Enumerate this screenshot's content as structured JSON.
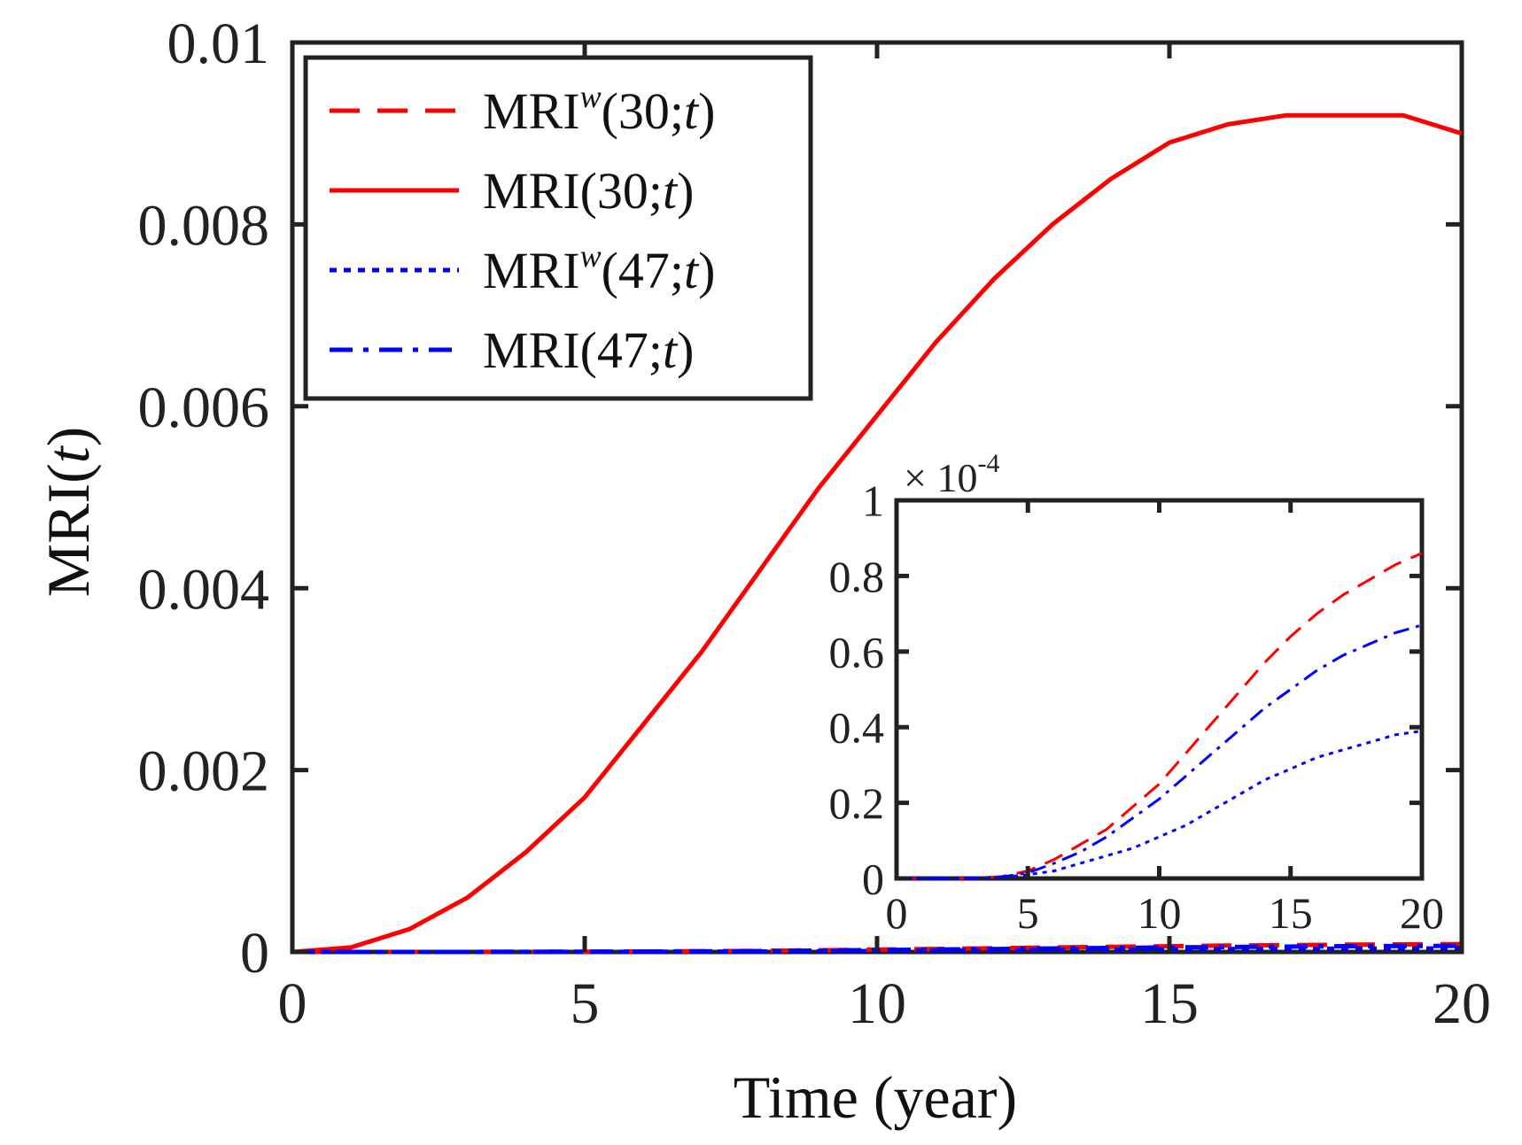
{
  "chart_data": [
    {
      "type": "line",
      "title": "",
      "xlabel": "Time (year)",
      "ylabel": "MRI(t)",
      "xlim": [
        0,
        20
      ],
      "ylim": [
        0,
        0.01
      ],
      "xticks": [
        0,
        5,
        10,
        15,
        20
      ],
      "yticks": [
        0,
        0.002,
        0.004,
        0.006,
        0.008,
        0.01
      ],
      "xtick_labels": [
        "0",
        "5",
        "10",
        "15",
        "20"
      ],
      "ytick_labels": [
        "0",
        "0.002",
        "0.004",
        "0.006",
        "0.008",
        "0.01"
      ],
      "legend_position": "top-left",
      "grid": false,
      "series": [
        {
          "name": "MRI^w(30;t)",
          "color": "#ff0000",
          "style": "dashed",
          "x": [
            0,
            2,
            4,
            6,
            8,
            10,
            12,
            14,
            16,
            18,
            20
          ],
          "y": [
            0,
            0.0,
            1e-06,
            5e-06,
            1.2e-05,
            2.5e-05,
            4.1e-05,
            5.6e-05,
            7e-05,
            8e-05,
            8.7e-05
          ]
        },
        {
          "name": "MRI(30;t)",
          "color": "#ff0000",
          "style": "solid",
          "x": [
            0,
            1,
            2,
            3,
            4,
            5,
            6,
            7,
            8,
            9,
            10,
            11,
            12,
            13,
            14,
            15,
            16,
            17,
            18,
            19,
            20
          ],
          "y": [
            0,
            5e-05,
            0.00025,
            0.0006,
            0.0011,
            0.0017,
            0.0025,
            0.0033,
            0.0042,
            0.0051,
            0.0059,
            0.0067,
            0.0074,
            0.008,
            0.0085,
            0.0089,
            0.0091,
            0.0092,
            0.0092,
            0.0092,
            0.009
          ]
        },
        {
          "name": "MRI^w(47;t)",
          "color": "#0000ff",
          "style": "dotted",
          "x": [
            0,
            2,
            4,
            6,
            8,
            10,
            12,
            14,
            16,
            18,
            20
          ],
          "y": [
            0,
            0.0,
            5e-07,
            2e-06,
            5e-06,
            1.1e-05,
            1.9e-05,
            2.6e-05,
            3.2e-05,
            3.6e-05,
            3.9e-05
          ]
        },
        {
          "name": "MRI(47;t)",
          "color": "#0000ff",
          "style": "dashdot",
          "x": [
            0,
            2,
            4,
            6,
            8,
            10,
            12,
            14,
            16,
            18,
            20
          ],
          "y": [
            0,
            0.0,
            1e-06,
            4e-06,
            1e-05,
            2e-05,
            3.2e-05,
            4.4e-05,
            5.5e-05,
            6.3e-05,
            6.7e-05
          ]
        }
      ]
    },
    {
      "type": "line",
      "title": "",
      "xlim": [
        0,
        20
      ],
      "ylim": [
        0,
        1
      ],
      "xticks": [
        0,
        5,
        10,
        15,
        20
      ],
      "yticks": [
        0,
        0.2,
        0.4,
        0.6,
        0.8,
        1
      ],
      "xtick_labels": [
        "0",
        "5",
        "10",
        "15",
        "20"
      ],
      "ytick_labels": [
        "0",
        "0.2",
        "0.4",
        "0.6",
        "0.8",
        "1"
      ],
      "y_multiplier": "× 10^-4",
      "legend_position": "none",
      "grid": false,
      "series": [
        {
          "color": "#ff0000",
          "style": "dashed",
          "x": [
            0,
            2,
            3,
            4,
            5,
            6,
            7,
            8,
            9,
            10,
            11,
            12,
            13,
            14,
            15,
            16,
            17,
            18,
            19,
            20
          ],
          "y": [
            0,
            0,
            0.001,
            0.005,
            0.02,
            0.05,
            0.09,
            0.13,
            0.19,
            0.25,
            0.33,
            0.41,
            0.49,
            0.57,
            0.64,
            0.7,
            0.75,
            0.79,
            0.83,
            0.86
          ]
        },
        {
          "color": "#0000ff",
          "style": "dotted",
          "x": [
            0,
            2,
            3,
            4,
            5,
            6,
            7,
            8,
            9,
            10,
            11,
            12,
            13,
            14,
            15,
            16,
            17,
            18,
            19,
            20
          ],
          "y": [
            0,
            0,
            0.001,
            0.003,
            0.01,
            0.02,
            0.04,
            0.06,
            0.08,
            0.11,
            0.14,
            0.18,
            0.22,
            0.26,
            0.29,
            0.32,
            0.34,
            0.36,
            0.38,
            0.39
          ]
        },
        {
          "color": "#0000ff",
          "style": "dashdot",
          "x": [
            0,
            2,
            3,
            4,
            5,
            6,
            7,
            8,
            9,
            10,
            11,
            12,
            13,
            14,
            15,
            16,
            17,
            18,
            19,
            20
          ],
          "y": [
            0,
            0,
            0.001,
            0.004,
            0.015,
            0.04,
            0.07,
            0.11,
            0.16,
            0.21,
            0.27,
            0.33,
            0.39,
            0.45,
            0.5,
            0.55,
            0.59,
            0.62,
            0.65,
            0.67
          ]
        }
      ]
    }
  ],
  "legend": {
    "items": [
      {
        "base": "MRI",
        "sup": "w",
        "args_pre": "(30;",
        "args_var": "t",
        "args_post": ")"
      },
      {
        "base": "MRI",
        "sup": "",
        "args_pre": "(30;",
        "args_var": "t",
        "args_post": ")"
      },
      {
        "base": "MRI",
        "sup": "w",
        "args_pre": "(47;",
        "args_var": "t",
        "args_post": ")"
      },
      {
        "base": "MRI",
        "sup": "",
        "args_pre": "(47;",
        "args_var": "t",
        "args_post": ")"
      }
    ]
  },
  "ylabel_parts": {
    "base": "MRI(",
    "var": "t",
    "close": ")"
  },
  "inset_multiplier": {
    "prefix": "× 10",
    "exp": "-4"
  }
}
